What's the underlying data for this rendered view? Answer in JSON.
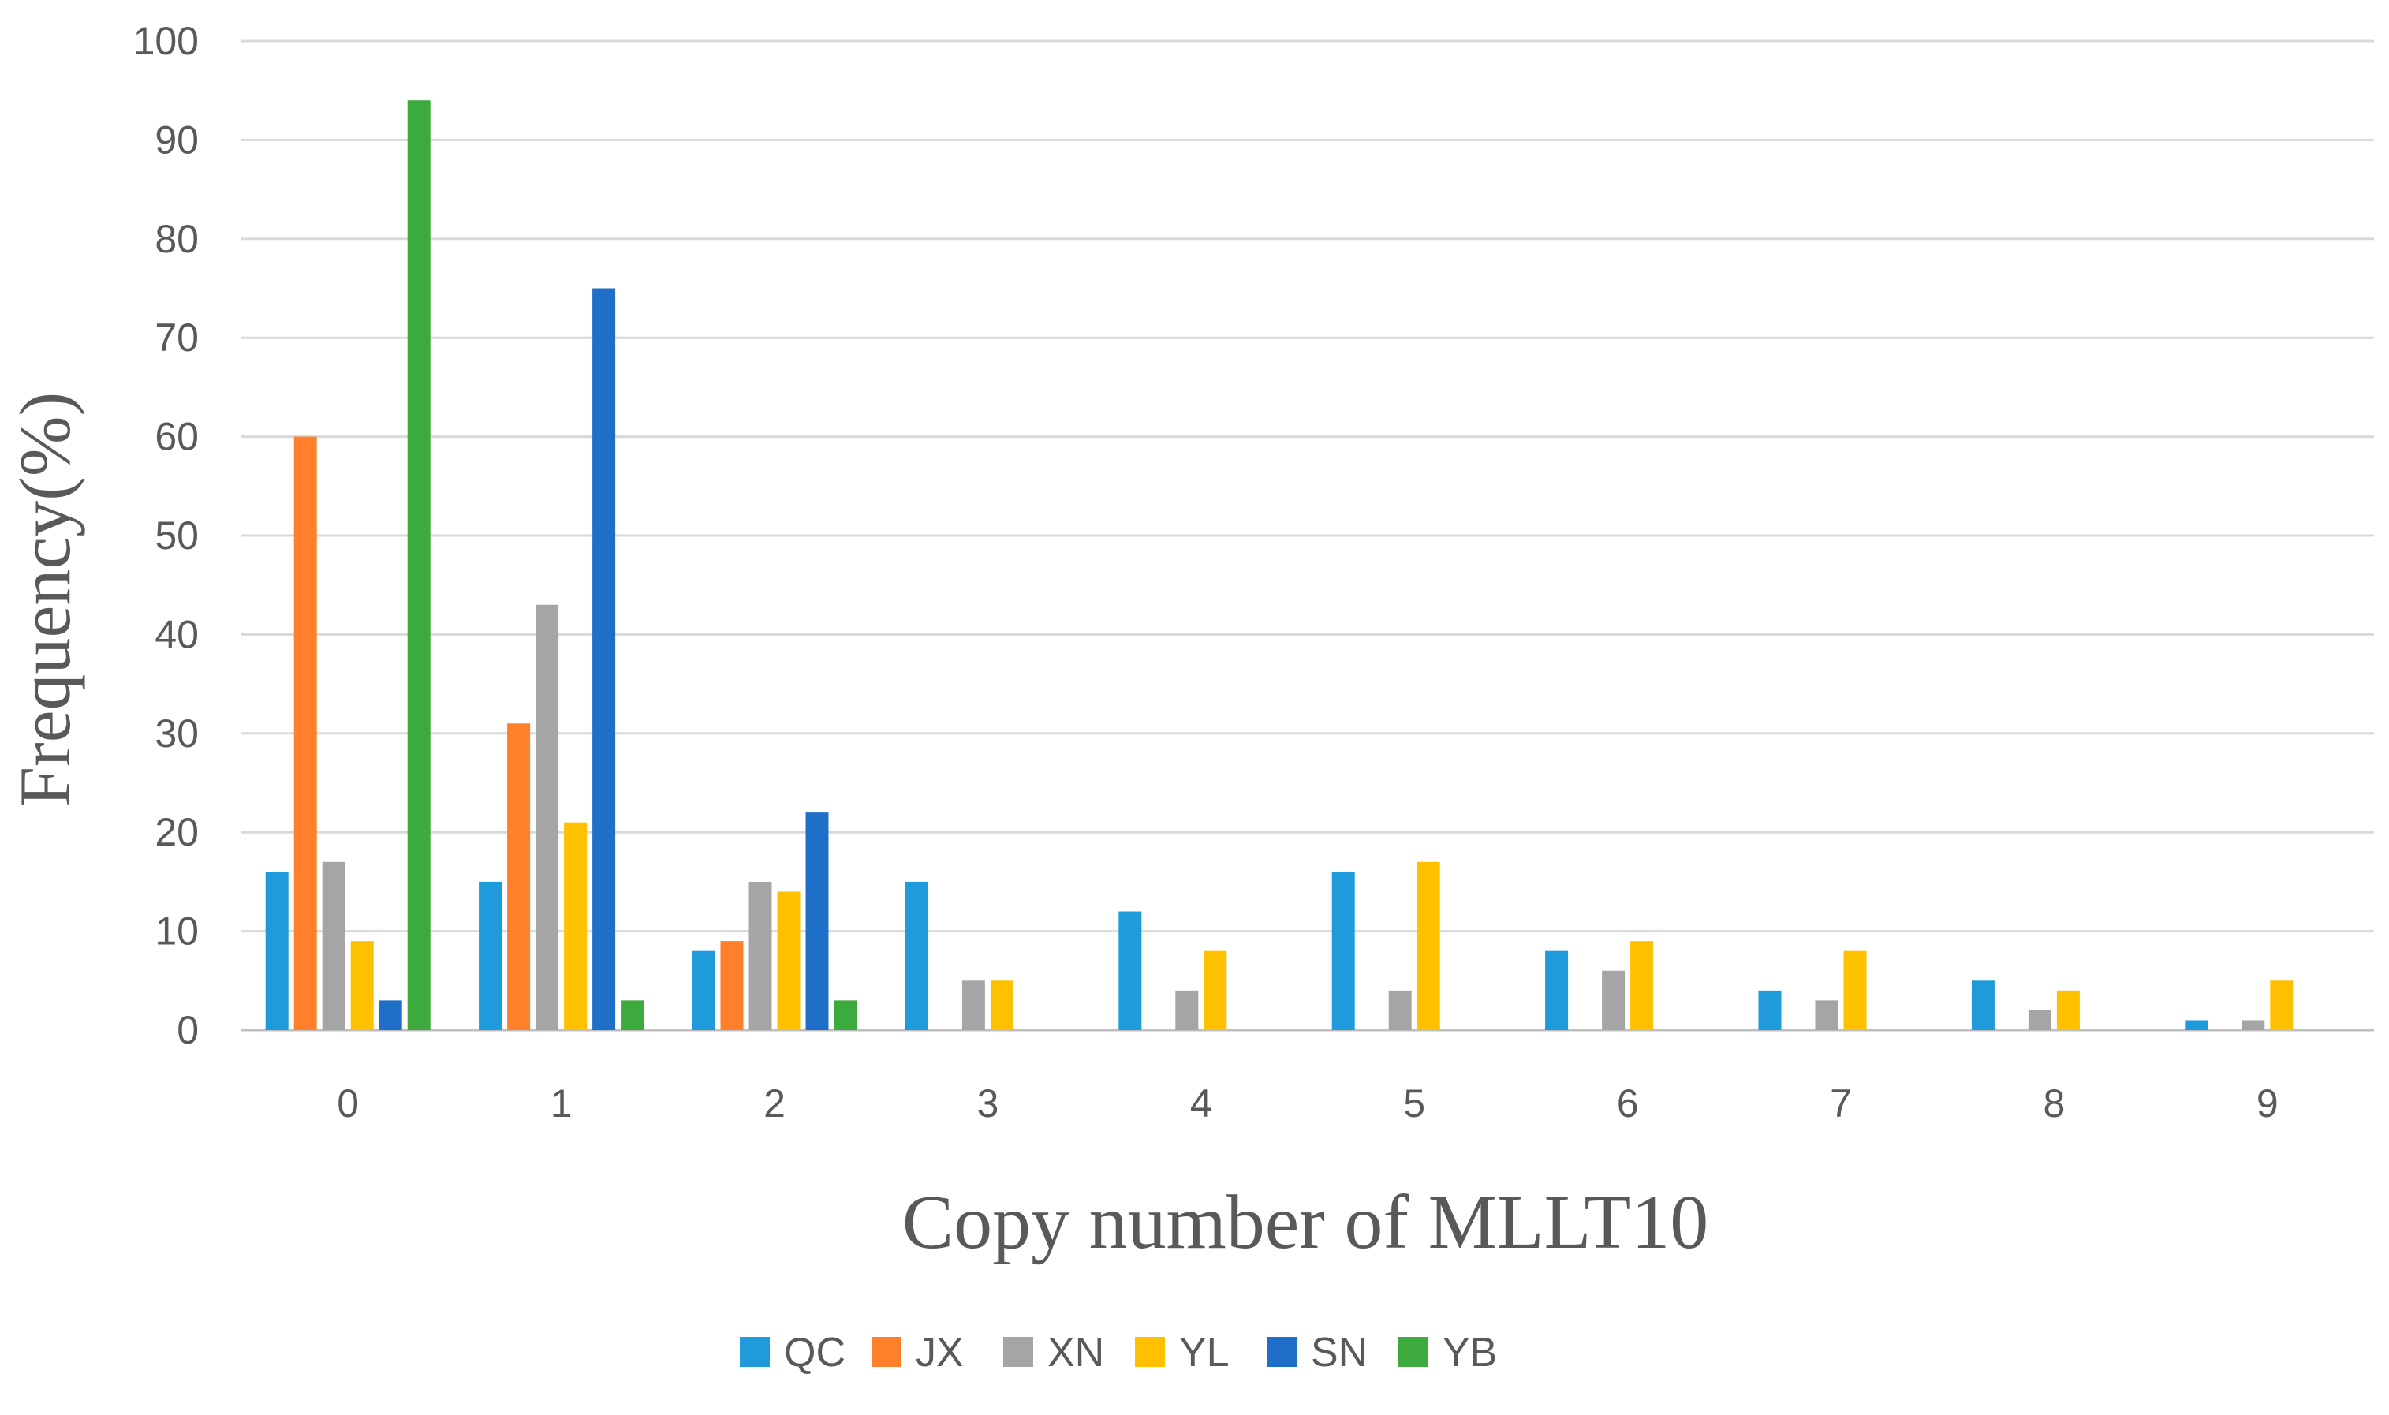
{
  "chart_data": {
    "type": "bar",
    "title": "",
    "xlabel": "Copy number of MLLT10",
    "ylabel": "Frequency(%)",
    "categories": [
      "0",
      "1",
      "2",
      "3",
      "4",
      "5",
      "6",
      "7",
      "8",
      "9"
    ],
    "ylim": [
      0,
      100
    ],
    "yticks": [
      "0",
      "10",
      "20",
      "30",
      "40",
      "50",
      "60",
      "70",
      "80",
      "90",
      "100"
    ],
    "grid": true,
    "legend_position": "bottom",
    "series": [
      {
        "name": "QC",
        "color": "#1F9BDB",
        "values": [
          16,
          15,
          8,
          15,
          12,
          16,
          8,
          4,
          5,
          1
        ]
      },
      {
        "name": "JX",
        "color": "#FF7F2A",
        "values": [
          60,
          31,
          9,
          0,
          0,
          0,
          0,
          0,
          0,
          0
        ]
      },
      {
        "name": "XN",
        "color": "#A5A5A5",
        "values": [
          17,
          43,
          15,
          5,
          4,
          4,
          6,
          3,
          2,
          1
        ]
      },
      {
        "name": "YL",
        "color": "#FFC000",
        "values": [
          9,
          21,
          14,
          5,
          8,
          17,
          9,
          8,
          4,
          5
        ]
      },
      {
        "name": "SN",
        "color": "#1F6FC8",
        "values": [
          3,
          75,
          22,
          0,
          0,
          0,
          0,
          0,
          0,
          0
        ]
      },
      {
        "name": "YB",
        "color": "#3CAA3C",
        "values": [
          94,
          3,
          3,
          0,
          0,
          0,
          0,
          0,
          0,
          0
        ]
      }
    ]
  }
}
